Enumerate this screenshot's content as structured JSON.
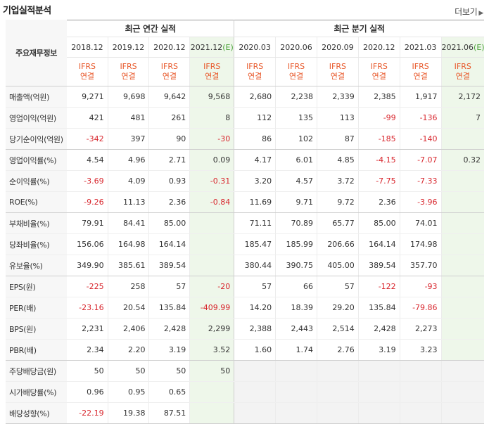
{
  "page": {
    "title": "기업실적분석",
    "more_label": "더보기"
  },
  "table": {
    "corner_label": "주요재무정보",
    "annual_group_label": "최근 연간 실적",
    "quarter_group_label": "최근 분기 실적",
    "annual_periods": [
      "2018.12",
      "2019.12",
      "2020.12",
      "2021.12"
    ],
    "annual_estimate_mark": "(E)",
    "quarter_periods": [
      "2020.03",
      "2020.06",
      "2020.09",
      "2020.12",
      "2021.03",
      "2021.06"
    ],
    "quarter_estimate_mark": "(E)",
    "ifrs_line1": "IFRS",
    "ifrs_line2": "연결",
    "rows": [
      {
        "label": "매출액(억원)",
        "values": [
          "9,271",
          "9,698",
          "9,642",
          "9,568",
          "2,680",
          "2,238",
          "2,339",
          "2,385",
          "1,917",
          "2,172"
        ]
      },
      {
        "label": "영업이익(억원)",
        "values": [
          "421",
          "481",
          "261",
          "8",
          "112",
          "135",
          "113",
          "-99",
          "-136",
          "7"
        ]
      },
      {
        "label": "당기순이익(억원)",
        "values": [
          "-342",
          "397",
          "90",
          "-30",
          "86",
          "102",
          "87",
          "-185",
          "-140",
          ""
        ]
      },
      {
        "label": "영업이익률(%)",
        "values": [
          "4.54",
          "4.96",
          "2.71",
          "0.09",
          "4.17",
          "6.01",
          "4.85",
          "-4.15",
          "-7.07",
          "0.32"
        ]
      },
      {
        "label": "순이익률(%)",
        "values": [
          "-3.69",
          "4.09",
          "0.93",
          "-0.31",
          "3.20",
          "4.57",
          "3.72",
          "-7.75",
          "-7.33",
          ""
        ]
      },
      {
        "label": "ROE(%)",
        "values": [
          "-9.26",
          "11.13",
          "2.36",
          "-0.84",
          "11.69",
          "9.71",
          "9.72",
          "2.36",
          "-3.96",
          ""
        ]
      },
      {
        "label": "부채비율(%)",
        "values": [
          "79.91",
          "84.41",
          "85.00",
          "",
          "71.11",
          "70.89",
          "65.77",
          "85.00",
          "74.01",
          ""
        ]
      },
      {
        "label": "당좌비율(%)",
        "values": [
          "156.06",
          "164.98",
          "164.14",
          "",
          "185.47",
          "185.99",
          "206.66",
          "164.14",
          "174.98",
          ""
        ]
      },
      {
        "label": "유보율(%)",
        "values": [
          "349.90",
          "385.61",
          "389.54",
          "",
          "380.44",
          "390.75",
          "405.00",
          "389.54",
          "357.70",
          ""
        ]
      },
      {
        "label": "EPS(원)",
        "values": [
          "-225",
          "258",
          "57",
          "-20",
          "57",
          "66",
          "57",
          "-122",
          "-93",
          ""
        ]
      },
      {
        "label": "PER(배)",
        "values": [
          "-23.16",
          "20.54",
          "135.84",
          "-409.99",
          "14.20",
          "18.39",
          "29.20",
          "135.84",
          "-79.86",
          ""
        ]
      },
      {
        "label": "BPS(원)",
        "values": [
          "2,231",
          "2,406",
          "2,428",
          "2,299",
          "2,388",
          "2,443",
          "2,514",
          "2,428",
          "2,273",
          ""
        ]
      },
      {
        "label": "PBR(배)",
        "values": [
          "2.34",
          "2.20",
          "3.19",
          "3.52",
          "1.60",
          "1.74",
          "2.76",
          "3.19",
          "3.23",
          ""
        ]
      },
      {
        "label": "주당배당금(원)",
        "values": [
          "50",
          "50",
          "50",
          "50",
          "",
          "",
          "",
          "",
          "",
          ""
        ]
      },
      {
        "label": "시가배당률(%)",
        "values": [
          "0.96",
          "0.95",
          "0.65",
          "",
          "",
          "",
          "",
          "",
          "",
          ""
        ]
      },
      {
        "label": "배당성향(%)",
        "values": [
          "-22.19",
          "19.38",
          "87.51",
          "",
          "",
          "",
          "",
          "",
          "",
          ""
        ]
      }
    ]
  },
  "colors": {
    "negative": "#d8262d",
    "ifrs": "#e8592b",
    "estimate_bg": "#eef7ea",
    "estimate_mark": "#4ba23a"
  }
}
